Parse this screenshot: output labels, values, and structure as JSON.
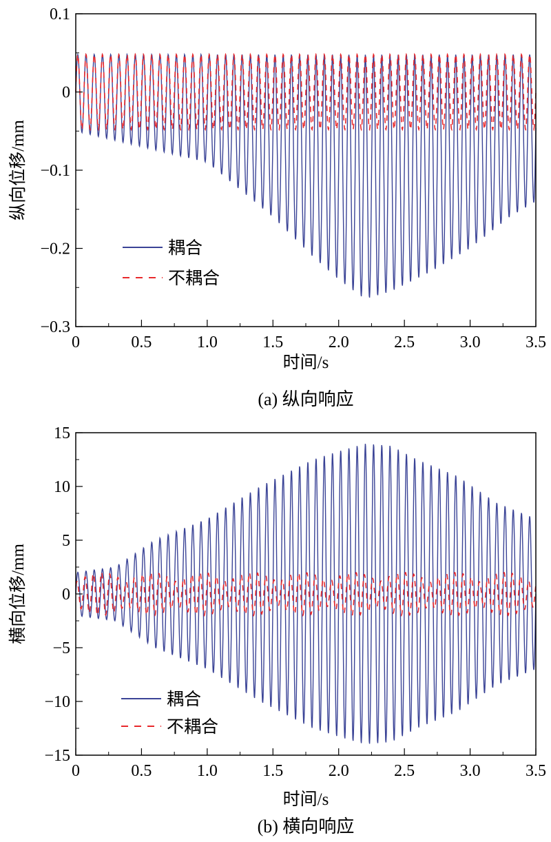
{
  "chart_data": [
    {
      "type": "line",
      "caption": "(a) 纵向响应",
      "xlabel": "时间/s",
      "ylabel": "纵向位移/mm",
      "xlim": [
        0,
        3.5
      ],
      "ylim": [
        -0.3,
        0.1
      ],
      "x_ticks": [
        0,
        0.5,
        1.0,
        1.5,
        2.0,
        2.5,
        3.0,
        3.5
      ],
      "x_tick_labels": [
        "0",
        "0.5",
        "1.0",
        "1.5",
        "2.0",
        "2.5",
        "3.0",
        "3.5"
      ],
      "y_ticks": [
        0.1,
        0,
        -0.1,
        -0.2,
        -0.3
      ],
      "y_tick_labels": [
        "0.1",
        "0",
        "−0.1",
        "−0.2",
        "−0.3"
      ],
      "legend_position": "lower-left",
      "series": [
        {
          "name": "耦合",
          "style": "solid",
          "color": "#3a4396",
          "upper_envelope": {
            "x": [
              0,
              3.5
            ],
            "y": [
              0.048,
              0.048
            ]
          },
          "lower_envelope": {
            "x": [
              0,
              0.5,
              1.0,
              1.5,
              1.8,
              2.0,
              2.2,
              2.4,
              2.7,
              3.0,
              3.3,
              3.5
            ],
            "y": [
              -0.05,
              -0.07,
              -0.09,
              -0.16,
              -0.21,
              -0.24,
              -0.265,
              -0.255,
              -0.23,
              -0.2,
              -0.16,
              -0.14
            ]
          },
          "frequency_hz": 16
        },
        {
          "name": "不耦合",
          "style": "dashed",
          "color": "#e8282b",
          "upper_envelope": {
            "x": [
              0,
              3.5
            ],
            "y": [
              0.048,
              0.048
            ]
          },
          "lower_envelope": {
            "x": [
              0,
              3.5
            ],
            "y": [
              -0.048,
              -0.048
            ]
          },
          "frequency_hz": 16
        }
      ]
    },
    {
      "type": "line",
      "caption": "(b) 横向响应",
      "xlabel": "时间/s",
      "ylabel": "横向位移/mm",
      "xlim": [
        0,
        3.5
      ],
      "ylim": [
        -15,
        15
      ],
      "x_ticks": [
        0,
        0.5,
        1.0,
        1.5,
        2.0,
        2.5,
        3.0,
        3.5
      ],
      "x_tick_labels": [
        "0",
        "0.5",
        "1.0",
        "1.5",
        "2.0",
        "2.5",
        "3.0",
        "3.5"
      ],
      "y_ticks": [
        15,
        10,
        5,
        0,
        -5,
        -10,
        -15
      ],
      "y_tick_labels": [
        "15",
        "10",
        "5",
        "0",
        "−5",
        "−10",
        "−15"
      ],
      "legend_position": "lower-left",
      "series": [
        {
          "name": "耦合",
          "style": "solid",
          "color": "#3a4396",
          "envelope": {
            "x": [
              0,
              0.3,
              0.6,
              1.0,
              1.4,
              1.8,
              2.0,
              2.2,
              2.4,
              2.6,
              2.9,
              3.2,
              3.5
            ],
            "y": [
              2,
              2.5,
              5,
              7,
              10,
              12.5,
              13.3,
              14,
              13.8,
              12.5,
              11,
              8.5,
              7
            ]
          },
          "frequency_hz": 16
        },
        {
          "name": "不耦合",
          "style": "dashed",
          "color": "#e8282b",
          "envelope": {
            "x": [
              0,
              3.5
            ],
            "y": [
              2,
              2
            ]
          },
          "frequency_hz": 16
        }
      ]
    }
  ],
  "colors": {
    "coupled": "#3a4396",
    "uncoupled": "#e8282b",
    "axis": "#000000"
  }
}
